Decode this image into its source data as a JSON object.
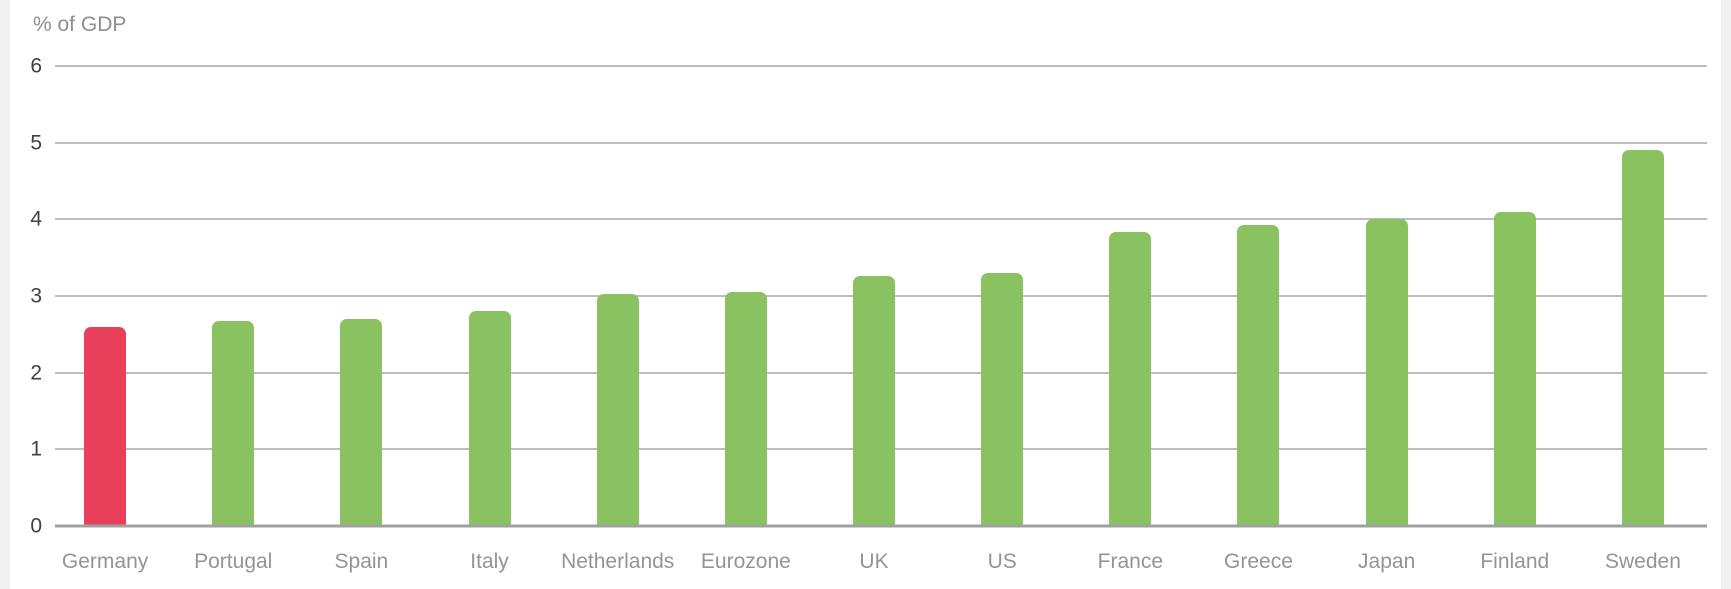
{
  "page": {
    "background": "#f0f0f0",
    "card_background": "#ffffff"
  },
  "chart_data": {
    "type": "bar",
    "title": "",
    "ylabel": "% of GDP",
    "xlabel": "",
    "categories": [
      "Germany",
      "Portugal",
      "Spain",
      "Italy",
      "Netherlands",
      "Eurozone",
      "UK",
      "US",
      "France",
      "Greece",
      "Japan",
      "Finland",
      "Sweden"
    ],
    "values": [
      2.6,
      2.67,
      2.7,
      2.8,
      3.02,
      3.05,
      3.26,
      3.3,
      3.84,
      3.92,
      4.0,
      4.09,
      4.9
    ],
    "highlight": {
      "category": "Germany",
      "index": 0
    },
    "yticks": [
      0,
      1,
      2,
      3,
      4,
      5,
      6
    ],
    "ylim": [
      0,
      6
    ],
    "grid": true,
    "legend": false,
    "colors": {
      "bar": "#8ac262",
      "highlight_bar": "#e8405a",
      "gridline": "#bdbdbd",
      "axis_line": "#a0a0a0",
      "tick_label": "#404040",
      "category_label": "#949494",
      "unit_label": "#8f8f8f"
    }
  }
}
